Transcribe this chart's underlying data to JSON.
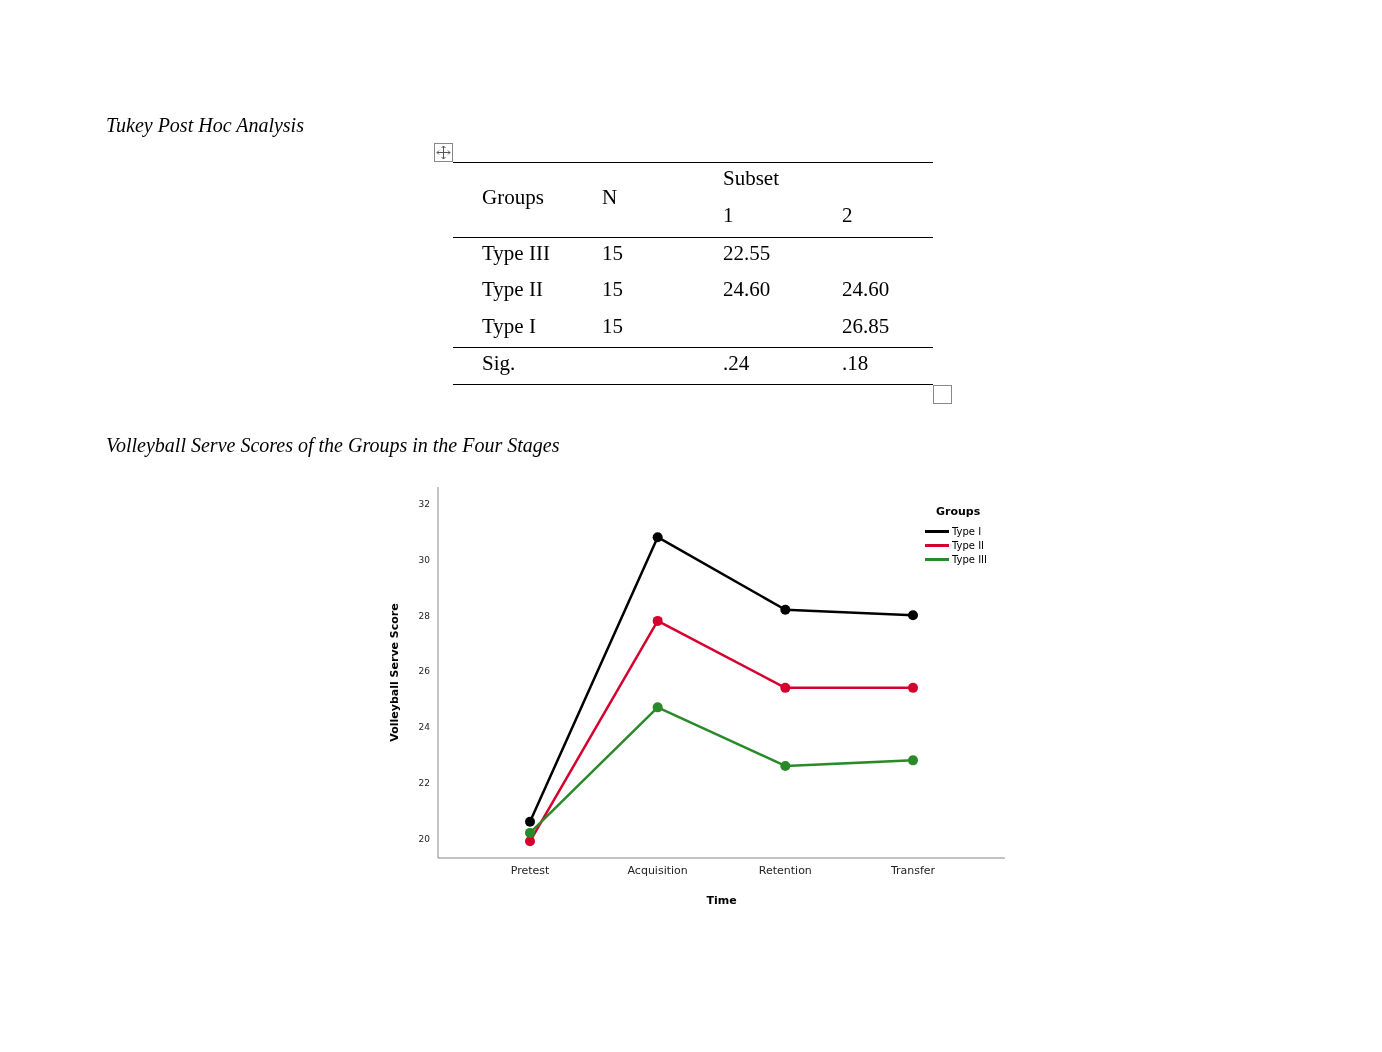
{
  "chart_data": [
    {
      "type": "other",
      "title": "Tukey Post Hoc Analysis",
      "annotations": [
        "Groups",
        "N",
        "Subset",
        "1",
        "2",
        "Type III",
        "15",
        "22.55",
        "Type II",
        "15",
        "24.60",
        "24.60",
        "Type I",
        "15",
        "26.85",
        "Sig.",
        ".24",
        ".18"
      ]
    },
    {
      "type": "line",
      "title": "Volleyball Serve Scores of the Groups in the Four Stages",
      "xlabel": "Time",
      "ylabel": "Volleyball Serve Score",
      "legend_title": "Groups",
      "categories": [
        "Pretest",
        "Acquisition",
        "Retention",
        "Transfer"
      ],
      "series": [
        {
          "name": "Type I",
          "color": "#000000",
          "values": [
            20.6,
            30.8,
            28.2,
            28.0
          ]
        },
        {
          "name": "Type II",
          "color": "#d6002f",
          "values": [
            19.9,
            27.8,
            25.4,
            25.4
          ]
        },
        {
          "name": "Type III",
          "color": "#2a8a2a",
          "values": [
            20.2,
            24.7,
            22.6,
            22.8
          ]
        }
      ],
      "ylim": [
        19.3,
        32.6
      ],
      "yticks": [
        20,
        22,
        24,
        26,
        28,
        30,
        32
      ],
      "grid": false,
      "legend": "top right",
      "marker": "circle",
      "line_style": "solid"
    }
  ]
}
